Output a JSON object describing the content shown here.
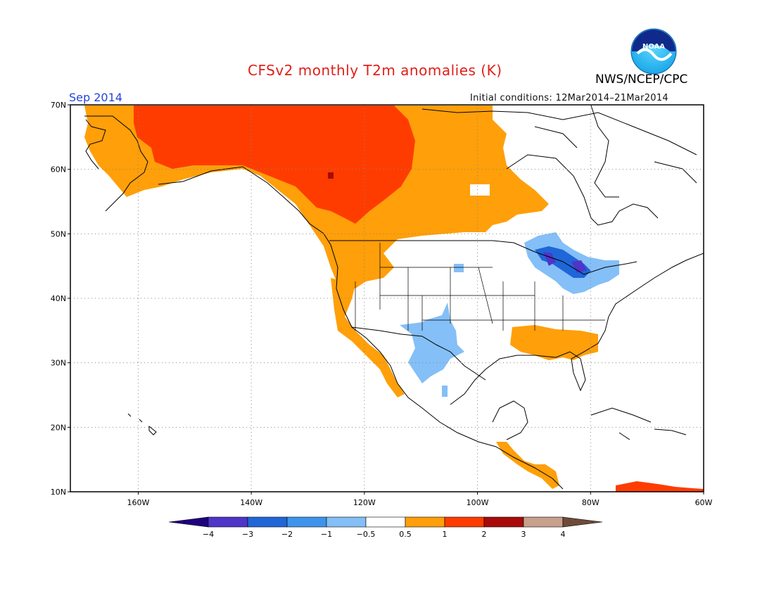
{
  "header": {
    "title": "CFSv2 monthly T2m anomalies (K)",
    "agency": "NWS/NCEP/CPC",
    "valid_month": "Sep 2014",
    "initial_conditions": "Initial conditions: 12Mar2014–21Mar2014",
    "logo_text": "NOAA"
  },
  "map": {
    "projection": "latitude-longitude",
    "lon_range": [
      -172,
      -60
    ],
    "lat_range": [
      10,
      70
    ],
    "grid": "dotted",
    "lat_labels": [
      "70N",
      "60N",
      "50N",
      "40N",
      "30N",
      "20N",
      "10N"
    ],
    "lat_values": [
      70,
      60,
      50,
      40,
      30,
      20,
      10
    ],
    "lon_labels": [
      "160W",
      "140W",
      "120W",
      "100W",
      "80W",
      "60W"
    ],
    "lon_values": [
      -160,
      -140,
      -120,
      -100,
      -80,
      -60
    ]
  },
  "colorbar": {
    "tick_labels": [
      "−4",
      "−3",
      "−2",
      "−1",
      "−0.5",
      "0.5",
      "1",
      "2",
      "3",
      "4"
    ],
    "bins": [
      {
        "range": "< -4",
        "color": "#1f007e"
      },
      {
        "range": "-4 to -3",
        "color": "#4f35c8"
      },
      {
        "range": "-3 to -2",
        "color": "#1f66d8"
      },
      {
        "range": "-2 to -1",
        "color": "#3e94ec"
      },
      {
        "range": "-1 to -0.5",
        "color": "#84bff7"
      },
      {
        "range": "-0.5 to 0.5",
        "color": "#ffffff"
      },
      {
        "range": "0.5 to 1",
        "color": "#ff9f09"
      },
      {
        "range": "1 to 2",
        "color": "#ff3c00"
      },
      {
        "range": "2 to 3",
        "color": "#a80a0a"
      },
      {
        "range": "3 to 4",
        "color": "#c8a08c"
      },
      {
        "range": "> 4",
        "color": "#6e4a3a"
      }
    ]
  },
  "anomaly_regions": [
    {
      "name": "Alaska and NW Canada",
      "category": "0.5 to 1"
    },
    {
      "name": "Interior Alaska and Yukon",
      "category": "1 to 2"
    },
    {
      "name": "Great Lakes region",
      "category": "-1 to -0.5"
    },
    {
      "name": "Northern Great Lakes",
      "category": "-4 to -3"
    },
    {
      "name": "Southwest US and northern Mexico",
      "category": "-1 to -0.5"
    },
    {
      "name": "Southeast US",
      "category": "0.5 to 1"
    },
    {
      "name": "US West Coast",
      "category": "0.5 to 1"
    },
    {
      "name": "Central America",
      "category": "0.5 to 1"
    },
    {
      "name": "Northern South America",
      "category": "1 to 2"
    }
  ]
}
